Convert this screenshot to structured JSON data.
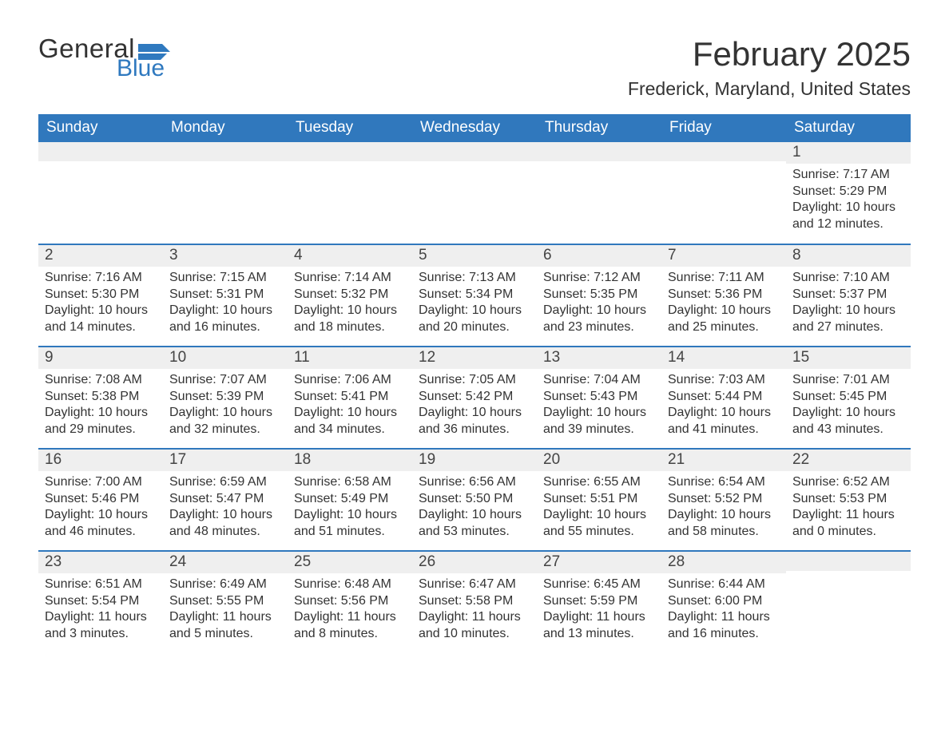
{
  "brand": {
    "word1": "General",
    "word2": "Blue",
    "flag_color": "#2f79bf"
  },
  "title": "February 2025",
  "location": "Frederick, Maryland, United States",
  "colors": {
    "header_bg": "#3078bd",
    "header_text": "#ffffff",
    "daynum_bg": "#efefef",
    "divider": "#3078bd",
    "body_text": "#333333"
  },
  "weekdays": [
    "Sunday",
    "Monday",
    "Tuesday",
    "Wednesday",
    "Thursday",
    "Friday",
    "Saturday"
  ],
  "labels": {
    "sunrise": "Sunrise:",
    "sunset": "Sunset:",
    "daylight": "Daylight:"
  },
  "weeks": [
    [
      null,
      null,
      null,
      null,
      null,
      null,
      {
        "n": "1",
        "sunrise": "7:17 AM",
        "sunset": "5:29 PM",
        "daylight": "10 hours and 12 minutes."
      }
    ],
    [
      {
        "n": "2",
        "sunrise": "7:16 AM",
        "sunset": "5:30 PM",
        "daylight": "10 hours and 14 minutes."
      },
      {
        "n": "3",
        "sunrise": "7:15 AM",
        "sunset": "5:31 PM",
        "daylight": "10 hours and 16 minutes."
      },
      {
        "n": "4",
        "sunrise": "7:14 AM",
        "sunset": "5:32 PM",
        "daylight": "10 hours and 18 minutes."
      },
      {
        "n": "5",
        "sunrise": "7:13 AM",
        "sunset": "5:34 PM",
        "daylight": "10 hours and 20 minutes."
      },
      {
        "n": "6",
        "sunrise": "7:12 AM",
        "sunset": "5:35 PM",
        "daylight": "10 hours and 23 minutes."
      },
      {
        "n": "7",
        "sunrise": "7:11 AM",
        "sunset": "5:36 PM",
        "daylight": "10 hours and 25 minutes."
      },
      {
        "n": "8",
        "sunrise": "7:10 AM",
        "sunset": "5:37 PM",
        "daylight": "10 hours and 27 minutes."
      }
    ],
    [
      {
        "n": "9",
        "sunrise": "7:08 AM",
        "sunset": "5:38 PM",
        "daylight": "10 hours and 29 minutes."
      },
      {
        "n": "10",
        "sunrise": "7:07 AM",
        "sunset": "5:39 PM",
        "daylight": "10 hours and 32 minutes."
      },
      {
        "n": "11",
        "sunrise": "7:06 AM",
        "sunset": "5:41 PM",
        "daylight": "10 hours and 34 minutes."
      },
      {
        "n": "12",
        "sunrise": "7:05 AM",
        "sunset": "5:42 PM",
        "daylight": "10 hours and 36 minutes."
      },
      {
        "n": "13",
        "sunrise": "7:04 AM",
        "sunset": "5:43 PM",
        "daylight": "10 hours and 39 minutes."
      },
      {
        "n": "14",
        "sunrise": "7:03 AM",
        "sunset": "5:44 PM",
        "daylight": "10 hours and 41 minutes."
      },
      {
        "n": "15",
        "sunrise": "7:01 AM",
        "sunset": "5:45 PM",
        "daylight": "10 hours and 43 minutes."
      }
    ],
    [
      {
        "n": "16",
        "sunrise": "7:00 AM",
        "sunset": "5:46 PM",
        "daylight": "10 hours and 46 minutes."
      },
      {
        "n": "17",
        "sunrise": "6:59 AM",
        "sunset": "5:47 PM",
        "daylight": "10 hours and 48 minutes."
      },
      {
        "n": "18",
        "sunrise": "6:58 AM",
        "sunset": "5:49 PM",
        "daylight": "10 hours and 51 minutes."
      },
      {
        "n": "19",
        "sunrise": "6:56 AM",
        "sunset": "5:50 PM",
        "daylight": "10 hours and 53 minutes."
      },
      {
        "n": "20",
        "sunrise": "6:55 AM",
        "sunset": "5:51 PM",
        "daylight": "10 hours and 55 minutes."
      },
      {
        "n": "21",
        "sunrise": "6:54 AM",
        "sunset": "5:52 PM",
        "daylight": "10 hours and 58 minutes."
      },
      {
        "n": "22",
        "sunrise": "6:52 AM",
        "sunset": "5:53 PM",
        "daylight": "11 hours and 0 minutes."
      }
    ],
    [
      {
        "n": "23",
        "sunrise": "6:51 AM",
        "sunset": "5:54 PM",
        "daylight": "11 hours and 3 minutes."
      },
      {
        "n": "24",
        "sunrise": "6:49 AM",
        "sunset": "5:55 PM",
        "daylight": "11 hours and 5 minutes."
      },
      {
        "n": "25",
        "sunrise": "6:48 AM",
        "sunset": "5:56 PM",
        "daylight": "11 hours and 8 minutes."
      },
      {
        "n": "26",
        "sunrise": "6:47 AM",
        "sunset": "5:58 PM",
        "daylight": "11 hours and 10 minutes."
      },
      {
        "n": "27",
        "sunrise": "6:45 AM",
        "sunset": "5:59 PM",
        "daylight": "11 hours and 13 minutes."
      },
      {
        "n": "28",
        "sunrise": "6:44 AM",
        "sunset": "6:00 PM",
        "daylight": "11 hours and 16 minutes."
      },
      null
    ]
  ]
}
